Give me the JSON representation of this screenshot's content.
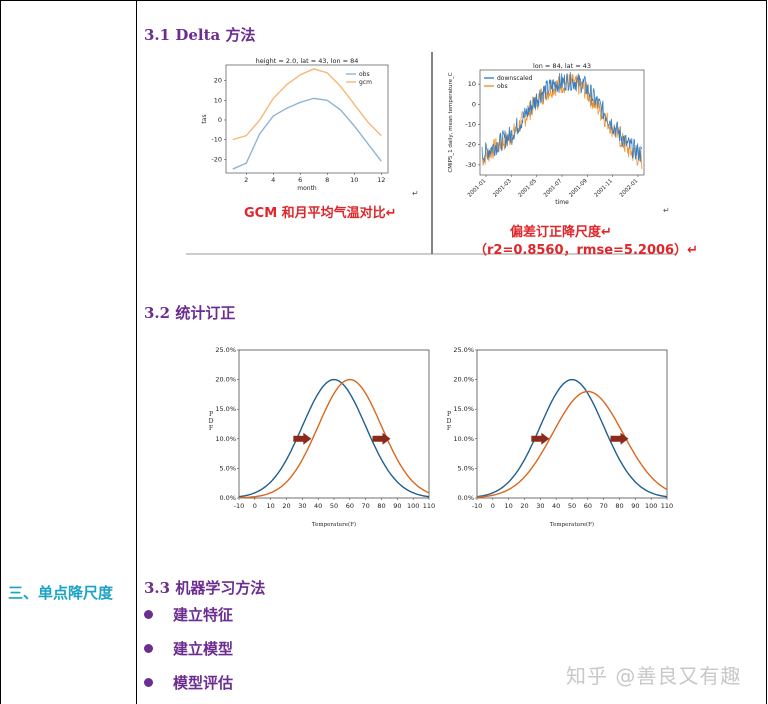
{
  "left_column": {
    "section_label": "三、单点降尺度"
  },
  "sections": {
    "delta": {
      "heading": "3.1 Delta 方法"
    },
    "stat": {
      "heading": "3.2 统计订正"
    },
    "ml": {
      "heading": "3.3 机器学习方法",
      "bullets": [
        "建立特征",
        "建立模型",
        "模型评估"
      ]
    }
  },
  "fig_gcm": {
    "title": "height = 2.0, lat = 43, lon = 84",
    "xlabel": "month",
    "ylabel": "tas",
    "caption": "GCM 和月平均气温对比↵",
    "legend": [
      "obs",
      "gcm"
    ]
  },
  "fig_bias": {
    "title": "lon = 84, lat = 43",
    "xlabel": "time",
    "ylabel": "CMIP5_1 daily, mean temperature_C",
    "legend": [
      "downscaled",
      "obs"
    ],
    "caption_1": "偏差订正降尺度↵",
    "caption_2": "（r2=0.8560，rmse=5.2006）↵"
  },
  "chart_data": [
    {
      "type": "line",
      "title": "height = 2.0, lat = 43, lon = 84",
      "xlabel": "month",
      "ylabel": "tas",
      "x": [
        1,
        2,
        3,
        4,
        5,
        6,
        7,
        8,
        9,
        10,
        11,
        12
      ],
      "xticks": [
        2,
        4,
        6,
        8,
        10,
        12
      ],
      "yticks": [
        -20,
        -10,
        0,
        10,
        20
      ],
      "ylim": [
        -27,
        28
      ],
      "series": [
        {
          "name": "obs",
          "color": "#8fb5d6",
          "values": [
            -25,
            -22,
            -7,
            2,
            6,
            9,
            11,
            10,
            5,
            -3,
            -12,
            -21
          ]
        },
        {
          "name": "gcm",
          "color": "#f5b878",
          "values": [
            -10,
            -8,
            0,
            11,
            18,
            23,
            26,
            24,
            17,
            8,
            -1,
            -8
          ]
        }
      ]
    },
    {
      "type": "line",
      "title": "lon = 84, lat = 43",
      "xlabel": "time",
      "ylabel": "CMIP5_1 daily, mean temperature_C",
      "xticks": [
        "2001-01",
        "2001-03",
        "2001-05",
        "2001-07",
        "2001-09",
        "2001-11",
        "2002-01"
      ],
      "yticks": [
        -30,
        -20,
        -10,
        0,
        10
      ],
      "ylim": [
        -35,
        17
      ],
      "series": [
        {
          "name": "downscaled",
          "color": "#3a7fc0",
          "trend": [
            -25,
            -20,
            -15,
            -5,
            5,
            10,
            12,
            10,
            0,
            -10,
            -20,
            -25
          ]
        },
        {
          "name": "obs",
          "color": "#f2922e",
          "trend": [
            -27,
            -21,
            -16,
            -6,
            4,
            9,
            11,
            8,
            -2,
            -12,
            -22,
            -28
          ]
        }
      ]
    },
    {
      "type": "line",
      "xlabel": "Temperature(F)",
      "ylabel": "PDF",
      "x_range": [
        -10,
        110
      ],
      "xticks": [
        -10,
        0,
        10,
        20,
        30,
        40,
        50,
        60,
        70,
        80,
        90,
        100,
        110
      ],
      "yticks": [
        "0.0%",
        "5.0%",
        "10.0%",
        "15.0%",
        "20.0%",
        "25.0%"
      ],
      "ylim": [
        0,
        25
      ],
      "series": [
        {
          "color": "#1f5f8f",
          "mean": 50,
          "peak": 20
        },
        {
          "color": "#d9671e",
          "mean": 60,
          "peak": 20
        }
      ]
    },
    {
      "type": "line",
      "xlabel": "Temperature(F)",
      "ylabel": "PDF",
      "x_range": [
        -10,
        110
      ],
      "xticks": [
        -10,
        0,
        10,
        20,
        30,
        40,
        50,
        60,
        70,
        80,
        90,
        100,
        110
      ],
      "yticks": [
        "0.0%",
        "5.0%",
        "10.0%",
        "15.0%",
        "20.0%",
        "25.0%"
      ],
      "ylim": [
        0,
        25
      ],
      "series": [
        {
          "color": "#1f5f8f",
          "mean": 50,
          "peak": 20
        },
        {
          "color": "#d9671e",
          "mean": 60,
          "peak": 18
        }
      ]
    }
  ],
  "watermark": "知乎 @善良又有趣"
}
